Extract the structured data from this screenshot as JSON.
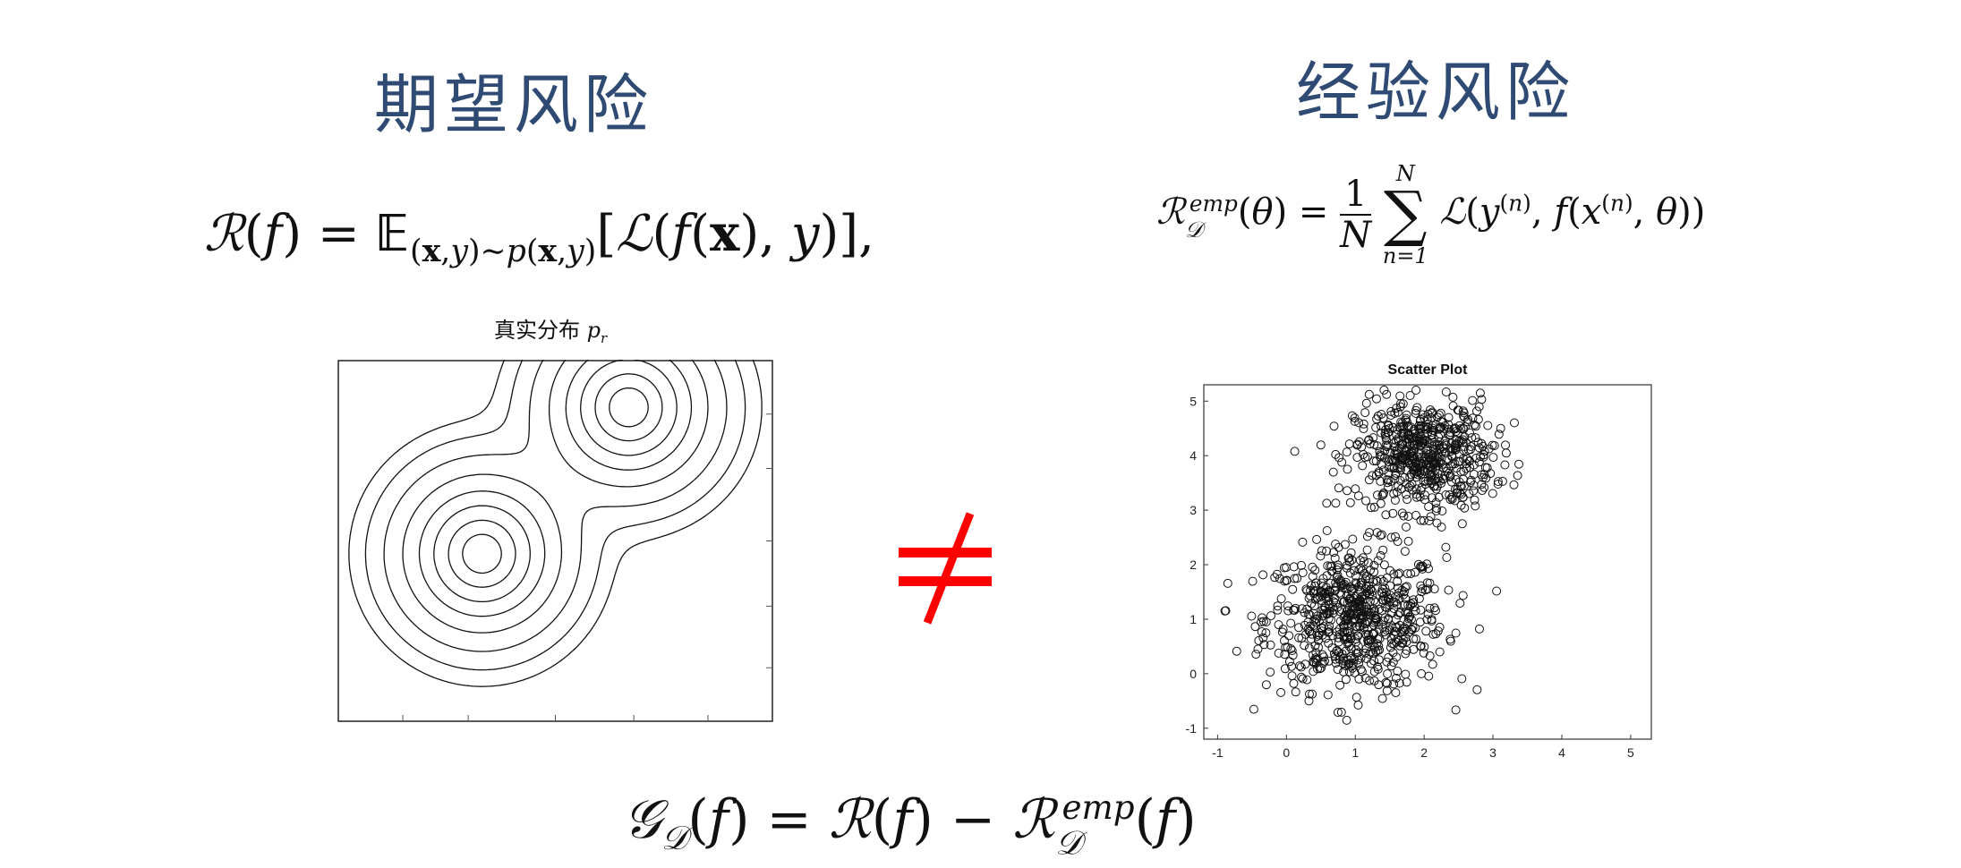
{
  "titles": {
    "left": "期望风险",
    "right": "经验风险"
  },
  "formulas": {
    "expected_risk": "R(f) = E_(x,y)~p(x,y)[L(f(x), y)],",
    "empirical_risk": "R_D^emp(θ) = (1/N) Σ_{n=1}^{N} L(y^(n), f(x^(n), θ))",
    "generalization_error": "G_D(f) = R(f) − R_D^emp(f)"
  },
  "not_equal_symbol": "≠",
  "colors": {
    "title": "#2f4a73",
    "not_equal": "#ff0000",
    "ink": "#111111"
  },
  "contour_plot": {
    "caption": "真实分布",
    "caption_symbol": "p",
    "caption_subscript": "r",
    "modes": [
      {
        "x": 1,
        "y": 1
      },
      {
        "x": 3,
        "y": 3
      }
    ]
  },
  "chart_data": {
    "type": "scatter",
    "title": "Scatter Plot",
    "xlabel": "",
    "ylabel": "",
    "xlim": [
      -1.2,
      5.3
    ],
    "ylim": [
      -1.2,
      5.3
    ],
    "xticks": [
      "-1",
      "0",
      "1",
      "2",
      "3",
      "4",
      "5"
    ],
    "yticks": [
      "-1",
      "0",
      "1",
      "2",
      "3",
      "4",
      "5"
    ],
    "clusters": [
      {
        "center": [
          1,
          1
        ],
        "spread": 0.65,
        "count": 700
      },
      {
        "center": [
          2,
          4
        ],
        "spread": 0.5,
        "count": 600
      }
    ],
    "marker": "open-circle",
    "grid": false
  }
}
